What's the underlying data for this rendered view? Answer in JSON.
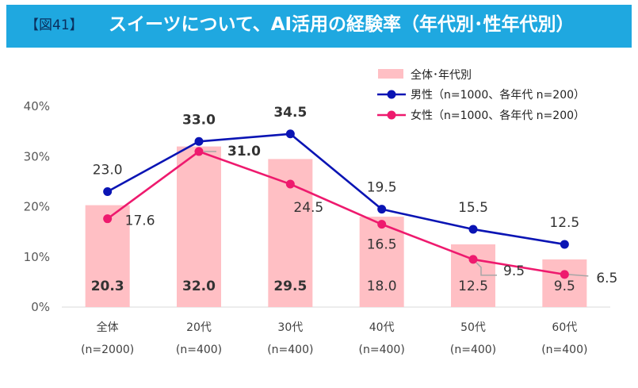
{
  "header": {
    "figure_tag": "【図41】",
    "title": "スイーツについて、AI活用の経験率（年代別･性年代別）"
  },
  "colors": {
    "banner": "#1fa8e0",
    "bar": "#ffbfc4",
    "male": "#0a14b4",
    "female": "#ee1a6e",
    "leader": "#a6a6a6"
  },
  "chart_data": {
    "type": "bar+line",
    "title": "スイーツについて、AI活用の経験率（年代別･性年代別）",
    "categories": [
      "全体",
      "20代",
      "30代",
      "40代",
      "50代",
      "60代"
    ],
    "category_notes": [
      "(n=2000)",
      "(n=400)",
      "(n=400)",
      "(n=400)",
      "(n=400)",
      "(n=400)"
    ],
    "y_ticks": [
      "0%",
      "10%",
      "20%",
      "30%",
      "40%"
    ],
    "ylim": [
      0,
      40
    ],
    "series": [
      {
        "name": "全体･年代別",
        "type": "bar",
        "values": [
          20.3,
          32.0,
          29.5,
          18.0,
          12.5,
          9.5
        ],
        "labels": [
          "20.3",
          "32.0",
          "29.5",
          "18.0",
          "12.5",
          "9.5"
        ],
        "bold": [
          true,
          true,
          true,
          false,
          false,
          false
        ]
      },
      {
        "name": "男性（n=1000、各年代 n=200）",
        "type": "line",
        "values": [
          23.0,
          33.0,
          34.5,
          19.5,
          15.5,
          12.5
        ],
        "labels": [
          "23.0",
          "33.0",
          "34.5",
          "19.5",
          "15.5",
          "12.5"
        ],
        "bold": [
          false,
          true,
          true,
          false,
          false,
          false
        ]
      },
      {
        "name": "女性（n=1000、各年代 n=200）",
        "type": "line",
        "values": [
          17.6,
          31.0,
          24.5,
          16.5,
          9.5,
          6.5
        ],
        "labels": [
          "17.6",
          "31.0",
          "24.5",
          "16.5",
          "9.5",
          "6.5"
        ],
        "bold": [
          false,
          true,
          false,
          false,
          false,
          false
        ]
      }
    ]
  }
}
